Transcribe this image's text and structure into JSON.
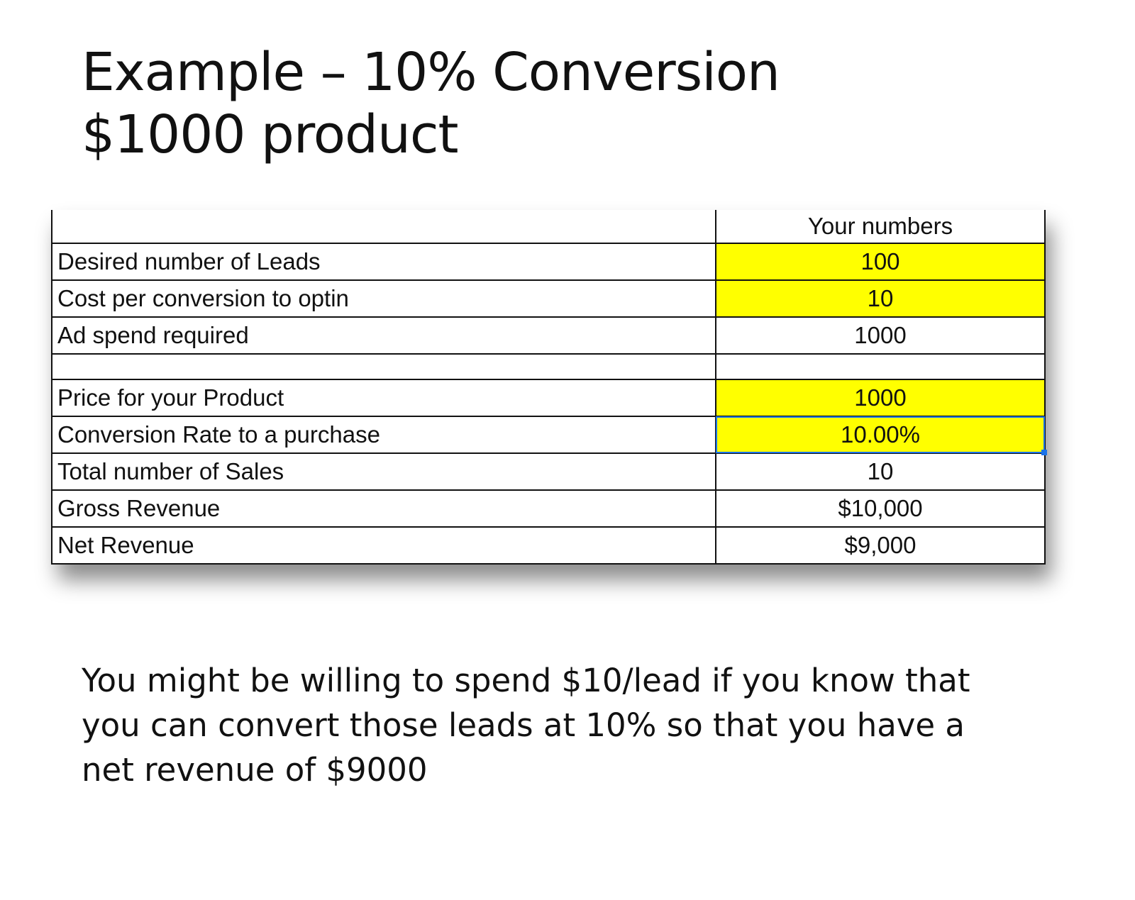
{
  "slide": {
    "title_line1": "Example – 10% Conversion",
    "title_line2": "$1000 product",
    "note": "You might be willing to spend $10/lead if you know that you can convert those leads at 10% so that you have a net revenue of $9000"
  },
  "table": {
    "column_header": "Your numbers",
    "highlight_color": "#ffff00",
    "selection_color": "#1a73e8",
    "rows": [
      {
        "label": "Desired number of Leads",
        "value": "100",
        "highlight": true
      },
      {
        "label": "Cost per conversion to optin",
        "value": "10",
        "highlight": true
      },
      {
        "label": "Ad spend required",
        "value": "1000",
        "highlight": false
      },
      {
        "label": "",
        "value": "",
        "highlight": false
      },
      {
        "label": "Price for your Product",
        "value": "1000",
        "highlight": true
      },
      {
        "label": "Conversion Rate to a purchase",
        "value": "10.00%",
        "highlight": true,
        "selected": true
      },
      {
        "label": "Total number of Sales",
        "value": "10",
        "highlight": false
      },
      {
        "label": "Gross Revenue",
        "value": "$10,000",
        "highlight": false
      },
      {
        "label": "Net Revenue",
        "value": "$9,000",
        "highlight": false
      }
    ]
  }
}
